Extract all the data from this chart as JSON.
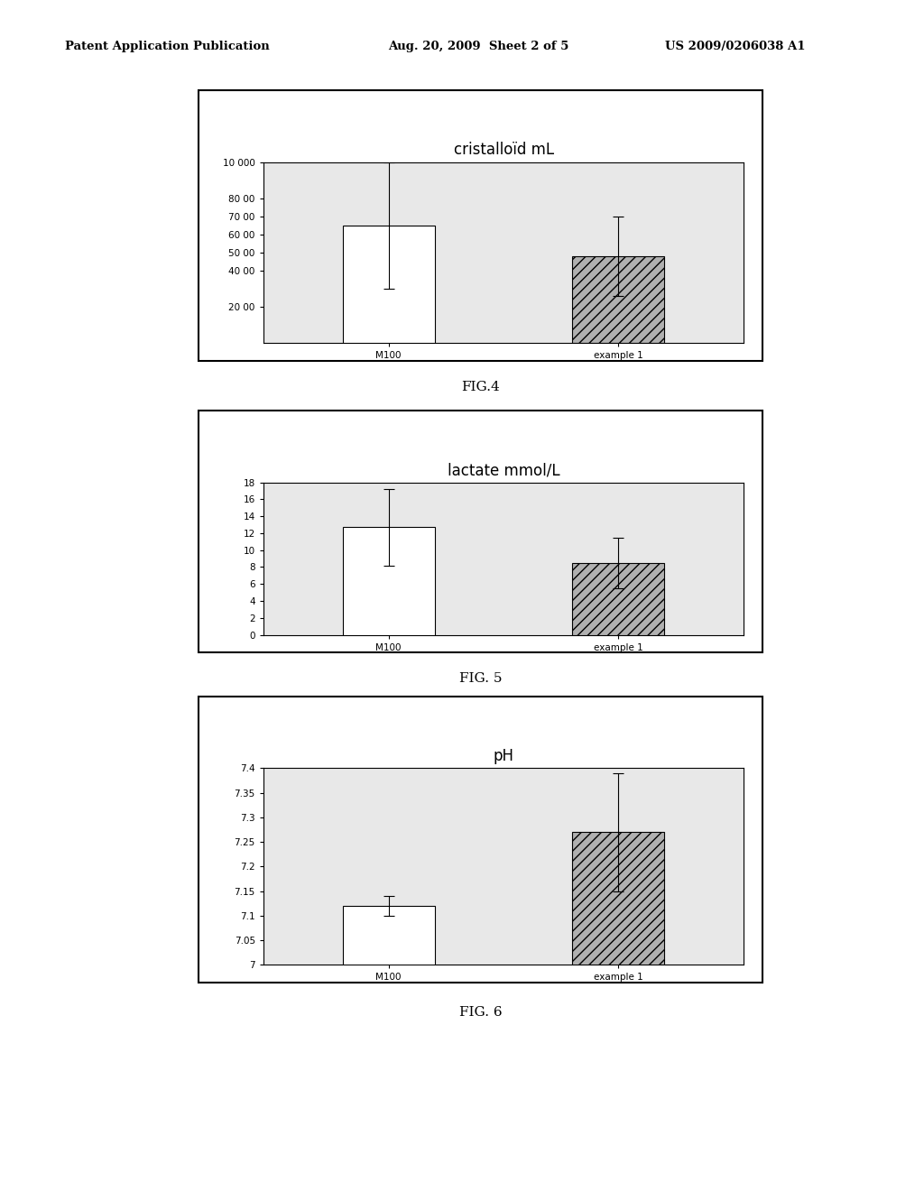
{
  "page_header_left": "Patent Application Publication",
  "page_header_mid": "Aug. 20, 2009  Sheet 2 of 5",
  "page_header_right": "US 2009/0206038 A1",
  "fig4": {
    "title": "cristalloïd mL",
    "categories": [
      "M100",
      "example 1"
    ],
    "values": [
      6500,
      4800
    ],
    "errors": [
      3500,
      2200
    ],
    "ylim": [
      0,
      10000
    ],
    "yticks": [
      2000,
      4000,
      5000,
      6000,
      7000,
      8000,
      10000
    ],
    "ytick_labels": [
      "20 00",
      "40 00",
      "50 00",
      "60 00",
      "70 00",
      "80 00",
      "10 000"
    ],
    "bar_colors": [
      "white",
      "#b0b0b0"
    ],
    "bar_edgecolor": "black",
    "bar_hatch": [
      null,
      "///"
    ],
    "caption": "FIG.4"
  },
  "fig5": {
    "title": "lactate mmol/L",
    "categories": [
      "M100",
      "example 1"
    ],
    "values": [
      12.7,
      8.5
    ],
    "errors": [
      4.5,
      3.0
    ],
    "ylim": [
      0,
      18
    ],
    "yticks": [
      0,
      2,
      4,
      6,
      8,
      10,
      12,
      14,
      16,
      18
    ],
    "ytick_labels": [
      "0",
      "2",
      "4",
      "6",
      "8",
      "10",
      "12",
      "14",
      "16",
      "18"
    ],
    "bar_colors": [
      "white",
      "#b0b0b0"
    ],
    "bar_edgecolor": "black",
    "bar_hatch": [
      null,
      "///"
    ],
    "caption": "FIG. 5"
  },
  "fig6": {
    "title": "pH",
    "categories": [
      "M100",
      "example 1"
    ],
    "values": [
      7.12,
      7.27
    ],
    "errors": [
      0.02,
      0.12
    ],
    "ylim": [
      7.0,
      7.4
    ],
    "yticks": [
      7.0,
      7.05,
      7.1,
      7.15,
      7.2,
      7.25,
      7.3,
      7.35,
      7.4
    ],
    "ytick_labels": [
      "7",
      "7.05",
      "7.1",
      "7.15",
      "7.2",
      "7.25",
      "7.3",
      "7.35",
      "7.4"
    ],
    "bar_colors": [
      "white",
      "#b0b0b0"
    ],
    "bar_edgecolor": "black",
    "bar_hatch": [
      null,
      "///"
    ],
    "caption": "FIG. 6"
  },
  "plot_bg": "#e8e8e8",
  "panel_bg": "#ffffff",
  "page_bg": "#ffffff"
}
